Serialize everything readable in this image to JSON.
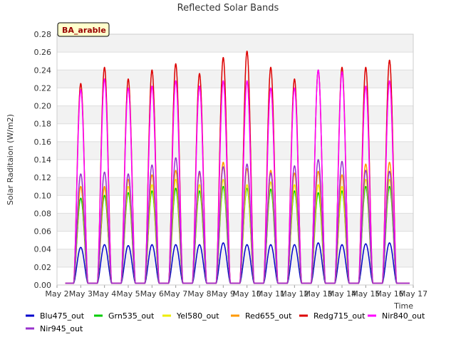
{
  "chart_data": {
    "type": "line",
    "title": "Reflected Solar Bands",
    "xlabel": "Time",
    "ylabel": "Solar Raditaion (W/m2)",
    "badge": "BA_arable",
    "ylim": [
      0,
      0.28
    ],
    "y_ticks": [
      "0.00",
      "0.02",
      "0.04",
      "0.06",
      "0.08",
      "0.10",
      "0.12",
      "0.14",
      "0.16",
      "0.18",
      "0.20",
      "0.22",
      "0.24",
      "0.26",
      "0.28"
    ],
    "x_ticks": [
      "May 2",
      "May 3",
      "May 4",
      "May 5",
      "May 6",
      "May 7",
      "May 8",
      "May 9",
      "May 10",
      "May 11",
      "May 12",
      "May 13",
      "May 14",
      "May 15",
      "May 16",
      "May 17"
    ],
    "x_range_days": [
      2,
      17
    ],
    "data_span_days": [
      2.35,
      16.85
    ],
    "day_centers": [
      3.0,
      4.0,
      5.0,
      6.0,
      7.0,
      8.0,
      9.0,
      10.0,
      11.0,
      12.0,
      13.0,
      14.0,
      15.0,
      16.0
    ],
    "series": [
      {
        "name": "Blu475_out",
        "color": "#0000cc",
        "daily_peaks": [
          0.042,
          0.045,
          0.044,
          0.045,
          0.045,
          0.045,
          0.047,
          0.045,
          0.045,
          0.045,
          0.047,
          0.045,
          0.046,
          0.047
        ]
      },
      {
        "name": "Grn535_out",
        "color": "#00cc00",
        "daily_peaks": [
          0.097,
          0.1,
          0.103,
          0.105,
          0.108,
          0.105,
          0.11,
          0.108,
          0.107,
          0.105,
          0.103,
          0.105,
          0.11,
          0.11
        ]
      },
      {
        "name": "Yel580_out",
        "color": "#eeee00",
        "daily_peaks": [
          0.11,
          0.108,
          0.11,
          0.112,
          0.118,
          0.112,
          0.118,
          0.112,
          0.115,
          0.112,
          0.112,
          0.11,
          0.118,
          0.118
        ]
      },
      {
        "name": "Red655_out",
        "color": "#ff9900",
        "daily_peaks": [
          0.11,
          0.11,
          0.118,
          0.123,
          0.128,
          0.125,
          0.137,
          0.13,
          0.128,
          0.125,
          0.127,
          0.123,
          0.135,
          0.137
        ]
      },
      {
        "name": "Redg715_out",
        "color": "#dd0000",
        "daily_peaks": [
          0.225,
          0.243,
          0.23,
          0.24,
          0.247,
          0.236,
          0.254,
          0.261,
          0.243,
          0.23,
          0.24,
          0.243,
          0.243,
          0.251
        ]
      },
      {
        "name": "Nir840_out",
        "color": "#ff00ff",
        "daily_peaks": [
          0.218,
          0.23,
          0.22,
          0.222,
          0.228,
          0.222,
          0.228,
          0.228,
          0.22,
          0.22,
          0.24,
          0.238,
          0.222,
          0.228
        ]
      },
      {
        "name": "Nir945_out",
        "color": "#9933cc",
        "daily_peaks": [
          0.124,
          0.126,
          0.124,
          0.134,
          0.142,
          0.127,
          0.132,
          0.135,
          0.125,
          0.133,
          0.14,
          0.138,
          0.128,
          0.127
        ]
      }
    ],
    "night_value": 0.002
  }
}
